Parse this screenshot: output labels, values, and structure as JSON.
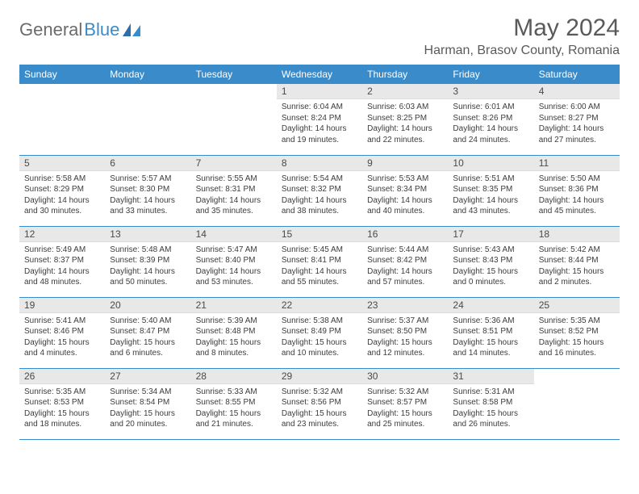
{
  "logo": {
    "text1": "General",
    "text2": "Blue"
  },
  "title": "May 2024",
  "location": "Harman, Brasov County, Romania",
  "colors": {
    "header_bg": "#3a8bc9",
    "header_text": "#ffffff",
    "daynum_bg": "#e8e8e8",
    "text": "#333333",
    "divider": "#3a8bc9",
    "logo_gray": "#6b6b6b",
    "logo_blue": "#3a8bc9",
    "background": "#ffffff"
  },
  "typography": {
    "title_fontsize": 30,
    "location_fontsize": 16,
    "header_fontsize": 12,
    "daynum_fontsize": 12,
    "content_fontsize": 10
  },
  "day_headers": [
    "Sunday",
    "Monday",
    "Tuesday",
    "Wednesday",
    "Thursday",
    "Friday",
    "Saturday"
  ],
  "weeks": [
    [
      {
        "n": "",
        "lines": []
      },
      {
        "n": "",
        "lines": []
      },
      {
        "n": "",
        "lines": []
      },
      {
        "n": "1",
        "lines": [
          "Sunrise: 6:04 AM",
          "Sunset: 8:24 PM",
          "Daylight: 14 hours and 19 minutes."
        ]
      },
      {
        "n": "2",
        "lines": [
          "Sunrise: 6:03 AM",
          "Sunset: 8:25 PM",
          "Daylight: 14 hours and 22 minutes."
        ]
      },
      {
        "n": "3",
        "lines": [
          "Sunrise: 6:01 AM",
          "Sunset: 8:26 PM",
          "Daylight: 14 hours and 24 minutes."
        ]
      },
      {
        "n": "4",
        "lines": [
          "Sunrise: 6:00 AM",
          "Sunset: 8:27 PM",
          "Daylight: 14 hours and 27 minutes."
        ]
      }
    ],
    [
      {
        "n": "5",
        "lines": [
          "Sunrise: 5:58 AM",
          "Sunset: 8:29 PM",
          "Daylight: 14 hours and 30 minutes."
        ]
      },
      {
        "n": "6",
        "lines": [
          "Sunrise: 5:57 AM",
          "Sunset: 8:30 PM",
          "Daylight: 14 hours and 33 minutes."
        ]
      },
      {
        "n": "7",
        "lines": [
          "Sunrise: 5:55 AM",
          "Sunset: 8:31 PM",
          "Daylight: 14 hours and 35 minutes."
        ]
      },
      {
        "n": "8",
        "lines": [
          "Sunrise: 5:54 AM",
          "Sunset: 8:32 PM",
          "Daylight: 14 hours and 38 minutes."
        ]
      },
      {
        "n": "9",
        "lines": [
          "Sunrise: 5:53 AM",
          "Sunset: 8:34 PM",
          "Daylight: 14 hours and 40 minutes."
        ]
      },
      {
        "n": "10",
        "lines": [
          "Sunrise: 5:51 AM",
          "Sunset: 8:35 PM",
          "Daylight: 14 hours and 43 minutes."
        ]
      },
      {
        "n": "11",
        "lines": [
          "Sunrise: 5:50 AM",
          "Sunset: 8:36 PM",
          "Daylight: 14 hours and 45 minutes."
        ]
      }
    ],
    [
      {
        "n": "12",
        "lines": [
          "Sunrise: 5:49 AM",
          "Sunset: 8:37 PM",
          "Daylight: 14 hours and 48 minutes."
        ]
      },
      {
        "n": "13",
        "lines": [
          "Sunrise: 5:48 AM",
          "Sunset: 8:39 PM",
          "Daylight: 14 hours and 50 minutes."
        ]
      },
      {
        "n": "14",
        "lines": [
          "Sunrise: 5:47 AM",
          "Sunset: 8:40 PM",
          "Daylight: 14 hours and 53 minutes."
        ]
      },
      {
        "n": "15",
        "lines": [
          "Sunrise: 5:45 AM",
          "Sunset: 8:41 PM",
          "Daylight: 14 hours and 55 minutes."
        ]
      },
      {
        "n": "16",
        "lines": [
          "Sunrise: 5:44 AM",
          "Sunset: 8:42 PM",
          "Daylight: 14 hours and 57 minutes."
        ]
      },
      {
        "n": "17",
        "lines": [
          "Sunrise: 5:43 AM",
          "Sunset: 8:43 PM",
          "Daylight: 15 hours and 0 minutes."
        ]
      },
      {
        "n": "18",
        "lines": [
          "Sunrise: 5:42 AM",
          "Sunset: 8:44 PM",
          "Daylight: 15 hours and 2 minutes."
        ]
      }
    ],
    [
      {
        "n": "19",
        "lines": [
          "Sunrise: 5:41 AM",
          "Sunset: 8:46 PM",
          "Daylight: 15 hours and 4 minutes."
        ]
      },
      {
        "n": "20",
        "lines": [
          "Sunrise: 5:40 AM",
          "Sunset: 8:47 PM",
          "Daylight: 15 hours and 6 minutes."
        ]
      },
      {
        "n": "21",
        "lines": [
          "Sunrise: 5:39 AM",
          "Sunset: 8:48 PM",
          "Daylight: 15 hours and 8 minutes."
        ]
      },
      {
        "n": "22",
        "lines": [
          "Sunrise: 5:38 AM",
          "Sunset: 8:49 PM",
          "Daylight: 15 hours and 10 minutes."
        ]
      },
      {
        "n": "23",
        "lines": [
          "Sunrise: 5:37 AM",
          "Sunset: 8:50 PM",
          "Daylight: 15 hours and 12 minutes."
        ]
      },
      {
        "n": "24",
        "lines": [
          "Sunrise: 5:36 AM",
          "Sunset: 8:51 PM",
          "Daylight: 15 hours and 14 minutes."
        ]
      },
      {
        "n": "25",
        "lines": [
          "Sunrise: 5:35 AM",
          "Sunset: 8:52 PM",
          "Daylight: 15 hours and 16 minutes."
        ]
      }
    ],
    [
      {
        "n": "26",
        "lines": [
          "Sunrise: 5:35 AM",
          "Sunset: 8:53 PM",
          "Daylight: 15 hours and 18 minutes."
        ]
      },
      {
        "n": "27",
        "lines": [
          "Sunrise: 5:34 AM",
          "Sunset: 8:54 PM",
          "Daylight: 15 hours and 20 minutes."
        ]
      },
      {
        "n": "28",
        "lines": [
          "Sunrise: 5:33 AM",
          "Sunset: 8:55 PM",
          "Daylight: 15 hours and 21 minutes."
        ]
      },
      {
        "n": "29",
        "lines": [
          "Sunrise: 5:32 AM",
          "Sunset: 8:56 PM",
          "Daylight: 15 hours and 23 minutes."
        ]
      },
      {
        "n": "30",
        "lines": [
          "Sunrise: 5:32 AM",
          "Sunset: 8:57 PM",
          "Daylight: 15 hours and 25 minutes."
        ]
      },
      {
        "n": "31",
        "lines": [
          "Sunrise: 5:31 AM",
          "Sunset: 8:58 PM",
          "Daylight: 15 hours and 26 minutes."
        ]
      },
      {
        "n": "",
        "lines": []
      }
    ]
  ]
}
